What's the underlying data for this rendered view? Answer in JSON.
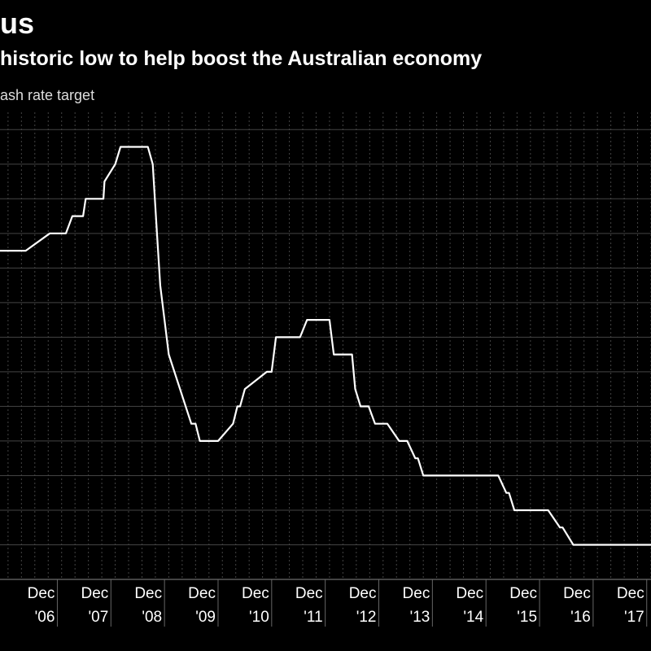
{
  "header": {
    "title": "us",
    "subtitle": "historic low to help boost the Australian economy",
    "ylabel": "ash rate target"
  },
  "chart_data": {
    "type": "line",
    "title": "us",
    "subtitle": "historic low to help boost the Australian economy",
    "ylabel": "ash rate target",
    "xlabel": "",
    "line_color": "#ffffff",
    "grid_color": "#444444",
    "grid": true,
    "x_range": [
      2005.85,
      2018.0
    ],
    "y_range": [
      1.0,
      7.75
    ],
    "ticks": [
      {
        "month": "Dec",
        "year": "'06",
        "x": 2006.92
      },
      {
        "month": "Dec",
        "year": "'07",
        "x": 2007.92
      },
      {
        "month": "Dec",
        "year": "'08",
        "x": 2008.92
      },
      {
        "month": "Dec",
        "year": "'09",
        "x": 2009.92
      },
      {
        "month": "Dec",
        "year": "'10",
        "x": 2010.92
      },
      {
        "month": "Dec",
        "year": "'11",
        "x": 2011.92
      },
      {
        "month": "Dec",
        "year": "'12",
        "x": 2012.92
      },
      {
        "month": "Dec",
        "year": "'13",
        "x": 2013.92
      },
      {
        "month": "Dec",
        "year": "'14",
        "x": 2014.92
      },
      {
        "month": "Dec",
        "year": "'15",
        "x": 2015.92
      },
      {
        "month": "Dec",
        "year": "'16",
        "x": 2016.92
      },
      {
        "month": "Dec",
        "year": "'17",
        "x": 2017.92
      }
    ],
    "series": [
      {
        "x": [
          2005.85,
          2006.0,
          2006.02,
          2006.28,
          2006.33,
          2006.78,
          2006.83,
          2007.0,
          2007.08,
          2007.2,
          2007.25,
          2007.4,
          2007.45,
          2007.78,
          2007.8,
          2008.0,
          2008.1,
          2008.15,
          2008.3,
          2008.45,
          2008.53,
          2008.61,
          2008.7,
          2008.78,
          2008.84,
          2009.0,
          2009.42,
          2009.5,
          2009.58,
          2009.76,
          2009.92,
          2010.2,
          2010.28,
          2010.33,
          2010.42,
          2010.83,
          2010.92,
          2011.0,
          2011.08,
          2011.45,
          2011.58,
          2011.85,
          2011.92,
          2012.0,
          2012.08,
          2012.25,
          2012.42,
          2012.48,
          2012.58,
          2012.66,
          2012.73,
          2012.85,
          2012.92,
          2013.08,
          2013.3,
          2013.35,
          2013.45,
          2013.6,
          2013.65,
          2013.75,
          2015.08,
          2015.15,
          2015.3,
          2015.35,
          2015.45,
          2015.6,
          2016.0,
          2016.08,
          2016.3,
          2016.35,
          2016.55,
          2016.62,
          2018.0
        ],
        "y": [
          5.75,
          5.75,
          5.75,
          5.75,
          5.75,
          6.0,
          6.0,
          6.0,
          6.0,
          6.25,
          6.25,
          6.25,
          6.5,
          6.5,
          6.75,
          7.0,
          7.25,
          7.25,
          7.25,
          7.25,
          7.25,
          7.25,
          7.0,
          6.0,
          5.25,
          4.25,
          3.25,
          3.25,
          3.0,
          3.0,
          3.0,
          3.25,
          3.5,
          3.5,
          3.75,
          4.0,
          4.0,
          4.5,
          4.5,
          4.5,
          4.75,
          4.75,
          4.75,
          4.75,
          4.25,
          4.25,
          4.25,
          3.75,
          3.5,
          3.5,
          3.5,
          3.25,
          3.25,
          3.25,
          3.0,
          3.0,
          3.0,
          2.75,
          2.75,
          2.5,
          2.5,
          2.5,
          2.25,
          2.25,
          2.0,
          2.0,
          2.0,
          2.0,
          1.75,
          1.75,
          1.5,
          1.5,
          1.5
        ]
      }
    ]
  }
}
